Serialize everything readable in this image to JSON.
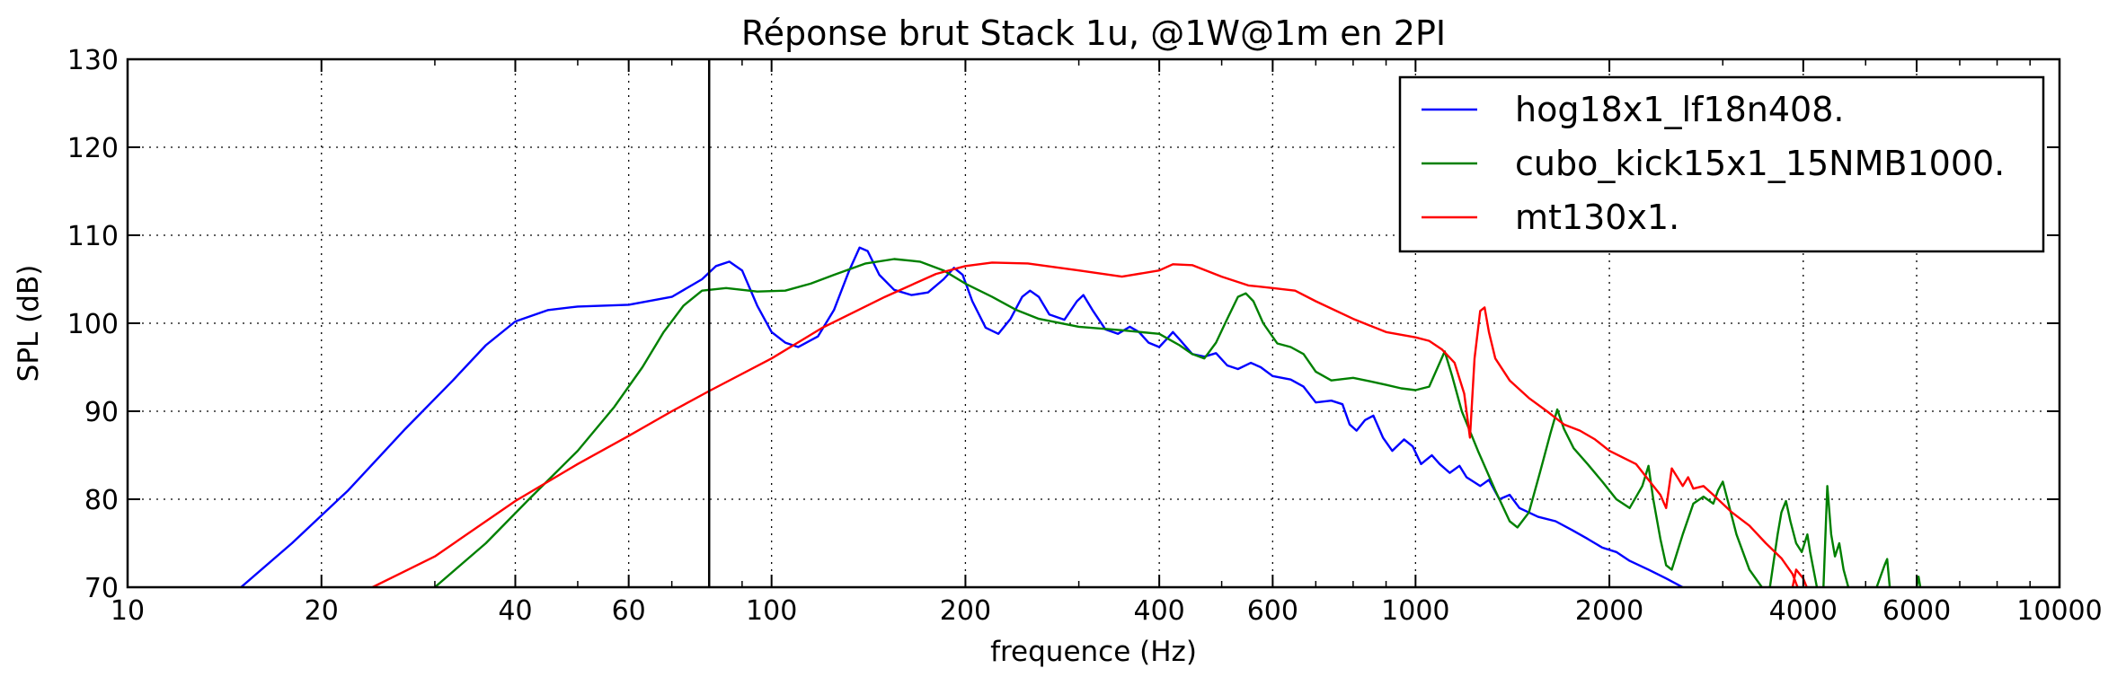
{
  "chart_data": {
    "type": "line",
    "title": "Réponse brut Stack 1u, @1W@1m en 2PI",
    "xlabel": "frequence (Hz)",
    "ylabel": "SPL (dB)",
    "x_scale": "log",
    "xlim": [
      10,
      10000
    ],
    "ylim": [
      70,
      130
    ],
    "x_ticks": [
      10,
      20,
      40,
      60,
      100,
      200,
      400,
      600,
      1000,
      2000,
      4000,
      6000,
      10000
    ],
    "x_tick_labels": [
      "10",
      "20",
      "40",
      "60",
      "100",
      "200",
      "400",
      "600",
      "1000",
      "2000",
      "4000",
      "6000",
      "10000"
    ],
    "y_ticks": [
      70,
      80,
      90,
      100,
      110,
      120,
      130
    ],
    "y_tick_labels": [
      "70",
      "80",
      "90",
      "100",
      "110",
      "120",
      "130"
    ],
    "grid": true,
    "legend_position": "top-right",
    "vertical_marker_x": 80,
    "series": [
      {
        "name": "hog18x1_lf18n408.",
        "color": "#0000ff",
        "points": [
          [
            15,
            70
          ],
          [
            18,
            75
          ],
          [
            22,
            81
          ],
          [
            27,
            88
          ],
          [
            32,
            93.5
          ],
          [
            36,
            97.5
          ],
          [
            40,
            100.2
          ],
          [
            45,
            101.5
          ],
          [
            50,
            101.9
          ],
          [
            60,
            102.1
          ],
          [
            70,
            103
          ],
          [
            78,
            105
          ],
          [
            82,
            106.5
          ],
          [
            86,
            107
          ],
          [
            90,
            106
          ],
          [
            95,
            102
          ],
          [
            100,
            99
          ],
          [
            105,
            97.8
          ],
          [
            110,
            97.3
          ],
          [
            118,
            98.5
          ],
          [
            125,
            101.5
          ],
          [
            132,
            106
          ],
          [
            137,
            108.6
          ],
          [
            141,
            108.2
          ],
          [
            147,
            105.5
          ],
          [
            155,
            103.8
          ],
          [
            165,
            103.2
          ],
          [
            175,
            103.5
          ],
          [
            185,
            105
          ],
          [
            192,
            106.3
          ],
          [
            198,
            105.5
          ],
          [
            205,
            102.5
          ],
          [
            215,
            99.5
          ],
          [
            225,
            98.8
          ],
          [
            235,
            100.5
          ],
          [
            245,
            103
          ],
          [
            252,
            103.7
          ],
          [
            260,
            103
          ],
          [
            270,
            101
          ],
          [
            285,
            100.4
          ],
          [
            298,
            102.5
          ],
          [
            305,
            103.2
          ],
          [
            315,
            101.5
          ],
          [
            330,
            99.3
          ],
          [
            345,
            98.8
          ],
          [
            360,
            99.6
          ],
          [
            372,
            99
          ],
          [
            385,
            97.8
          ],
          [
            400,
            97.3
          ],
          [
            412,
            98.3
          ],
          [
            420,
            99
          ],
          [
            432,
            98
          ],
          [
            450,
            96.5
          ],
          [
            470,
            96.2
          ],
          [
            490,
            96.6
          ],
          [
            510,
            95.2
          ],
          [
            530,
            94.8
          ],
          [
            555,
            95.5
          ],
          [
            575,
            95
          ],
          [
            600,
            94
          ],
          [
            640,
            93.6
          ],
          [
            670,
            92.8
          ],
          [
            700,
            91
          ],
          [
            740,
            91.2
          ],
          [
            770,
            90.8
          ],
          [
            790,
            88.5
          ],
          [
            810,
            87.8
          ],
          [
            835,
            89
          ],
          [
            860,
            89.5
          ],
          [
            890,
            87
          ],
          [
            920,
            85.5
          ],
          [
            960,
            86.8
          ],
          [
            990,
            86
          ],
          [
            1020,
            84
          ],
          [
            1060,
            85
          ],
          [
            1090,
            84
          ],
          [
            1130,
            83
          ],
          [
            1170,
            83.8
          ],
          [
            1200,
            82.5
          ],
          [
            1260,
            81.5
          ],
          [
            1300,
            82.2
          ],
          [
            1350,
            80
          ],
          [
            1400,
            80.5
          ],
          [
            1450,
            79
          ],
          [
            1550,
            78
          ],
          [
            1650,
            77.5
          ],
          [
            1750,
            76.5
          ],
          [
            1850,
            75.5
          ],
          [
            1950,
            74.5
          ],
          [
            2050,
            74
          ],
          [
            2150,
            73
          ],
          [
            2300,
            72
          ],
          [
            2450,
            71
          ],
          [
            2600,
            70
          ]
        ]
      },
      {
        "name": "cubo_kick15x1_15NMB1000.",
        "color": "#008000",
        "points": [
          [
            30,
            70
          ],
          [
            36,
            75
          ],
          [
            42,
            80
          ],
          [
            50,
            85.5
          ],
          [
            57,
            90.5
          ],
          [
            63,
            95
          ],
          [
            68,
            99
          ],
          [
            73,
            102
          ],
          [
            78,
            103.7
          ],
          [
            85,
            104
          ],
          [
            95,
            103.6
          ],
          [
            105,
            103.7
          ],
          [
            115,
            104.5
          ],
          [
            125,
            105.5
          ],
          [
            140,
            106.8
          ],
          [
            155,
            107.3
          ],
          [
            170,
            107
          ],
          [
            185,
            106
          ],
          [
            200,
            104.5
          ],
          [
            220,
            103
          ],
          [
            240,
            101.5
          ],
          [
            260,
            100.5
          ],
          [
            300,
            99.6
          ],
          [
            350,
            99.2
          ],
          [
            400,
            98.8
          ],
          [
            430,
            97.5
          ],
          [
            450,
            96.5
          ],
          [
            470,
            96
          ],
          [
            490,
            97.8
          ],
          [
            510,
            100.5
          ],
          [
            530,
            103
          ],
          [
            545,
            103.4
          ],
          [
            560,
            102.5
          ],
          [
            580,
            100
          ],
          [
            610,
            97.7
          ],
          [
            640,
            97.3
          ],
          [
            670,
            96.5
          ],
          [
            700,
            94.5
          ],
          [
            740,
            93.5
          ],
          [
            800,
            93.8
          ],
          [
            850,
            93.4
          ],
          [
            900,
            93
          ],
          [
            950,
            92.6
          ],
          [
            1000,
            92.4
          ],
          [
            1050,
            92.8
          ],
          [
            1090,
            95.5
          ],
          [
            1110,
            96.8
          ],
          [
            1140,
            94
          ],
          [
            1180,
            90
          ],
          [
            1250,
            85.5
          ],
          [
            1330,
            81
          ],
          [
            1400,
            77.5
          ],
          [
            1440,
            76.8
          ],
          [
            1500,
            78.5
          ],
          [
            1560,
            83
          ],
          [
            1620,
            87.5
          ],
          [
            1660,
            90.2
          ],
          [
            1700,
            88
          ],
          [
            1760,
            85.8
          ],
          [
            1850,
            84
          ],
          [
            1950,
            82
          ],
          [
            2050,
            80
          ],
          [
            2150,
            79
          ],
          [
            2250,
            81.5
          ],
          [
            2300,
            83.8
          ],
          [
            2340,
            80
          ],
          [
            2400,
            75.5
          ],
          [
            2450,
            72.5
          ],
          [
            2500,
            72
          ],
          [
            2600,
            76
          ],
          [
            2700,
            79.5
          ],
          [
            2800,
            80.3
          ],
          [
            2900,
            79.5
          ],
          [
            2950,
            81
          ],
          [
            3000,
            82
          ],
          [
            3050,
            80
          ],
          [
            3150,
            76
          ],
          [
            3300,
            72
          ],
          [
            3450,
            70
          ]
        ]
      },
      {
        "name": "cubo_kick15x1_15NMB1000.",
        "color": "#008000",
        "points": [
          [
            3550,
            70
          ],
          [
            3650,
            76
          ],
          [
            3700,
            78.5
          ],
          [
            3760,
            79.8
          ],
          [
            3820,
            77.5
          ],
          [
            3900,
            75
          ],
          [
            3980,
            74
          ],
          [
            4060,
            76
          ],
          [
            4100,
            74
          ],
          [
            4200,
            70
          ]
        ]
      },
      {
        "name": "cubo_kick15x1_15NMB1000.",
        "color": "#008000",
        "points": [
          [
            4300,
            70
          ],
          [
            4360,
            81.5
          ],
          [
            4420,
            76
          ],
          [
            4480,
            73.5
          ],
          [
            4550,
            75
          ],
          [
            4620,
            72
          ],
          [
            4700,
            70
          ]
        ]
      },
      {
        "name": "cubo_kick15x1_15NMB1000.",
        "color": "#008000",
        "points": [
          [
            5200,
            70
          ],
          [
            5350,
            72.5
          ],
          [
            5400,
            73.2
          ],
          [
            5450,
            70
          ]
        ]
      },
      {
        "name": "cubo_kick15x1_15NMB1000.",
        "color": "#008000",
        "points": [
          [
            6000,
            70
          ],
          [
            6040,
            71.2
          ],
          [
            6080,
            70
          ]
        ]
      },
      {
        "name": "mt130x1.",
        "color": "#ff0000",
        "points": [
          [
            24,
            70
          ],
          [
            30,
            73.5
          ],
          [
            40,
            79.8
          ],
          [
            50,
            84
          ],
          [
            60,
            87.2
          ],
          [
            70,
            90
          ],
          [
            80,
            92.3
          ],
          [
            100,
            96
          ],
          [
            120,
            99.5
          ],
          [
            150,
            103
          ],
          [
            180,
            105.6
          ],
          [
            200,
            106.5
          ],
          [
            220,
            106.9
          ],
          [
            250,
            106.8
          ],
          [
            300,
            106
          ],
          [
            350,
            105.3
          ],
          [
            400,
            106
          ],
          [
            420,
            106.7
          ],
          [
            450,
            106.6
          ],
          [
            500,
            105.3
          ],
          [
            550,
            104.3
          ],
          [
            600,
            104
          ],
          [
            650,
            103.7
          ],
          [
            700,
            102.5
          ],
          [
            800,
            100.5
          ],
          [
            900,
            99
          ],
          [
            1000,
            98.4
          ],
          [
            1050,
            98
          ],
          [
            1100,
            97
          ],
          [
            1150,
            95.5
          ],
          [
            1190,
            92
          ],
          [
            1215,
            87
          ],
          [
            1235,
            96
          ],
          [
            1260,
            101.4
          ],
          [
            1280,
            101.8
          ],
          [
            1300,
            99
          ],
          [
            1330,
            96
          ],
          [
            1400,
            93.5
          ],
          [
            1500,
            91.5
          ],
          [
            1600,
            90
          ],
          [
            1700,
            88.5
          ],
          [
            1800,
            87.8
          ],
          [
            1900,
            86.8
          ],
          [
            2000,
            85.5
          ],
          [
            2200,
            84
          ],
          [
            2400,
            80.5
          ],
          [
            2450,
            79
          ],
          [
            2500,
            83.5
          ],
          [
            2550,
            82.5
          ],
          [
            2600,
            81.5
          ],
          [
            2650,
            82.5
          ],
          [
            2700,
            81.2
          ],
          [
            2800,
            81.5
          ],
          [
            2900,
            80.5
          ],
          [
            3100,
            78.5
          ],
          [
            3300,
            77
          ],
          [
            3500,
            75
          ],
          [
            3700,
            73.3
          ],
          [
            3850,
            71.5
          ],
          [
            3920,
            70
          ]
        ]
      },
      {
        "name": "mt130x1.",
        "color": "#ff0000",
        "points": [
          [
            3850,
            70
          ],
          [
            3900,
            72
          ],
          [
            4000,
            71
          ],
          [
            4050,
            70
          ]
        ]
      }
    ],
    "legend": [
      {
        "label": "hog18x1_lf18n408.",
        "color": "#0000ff"
      },
      {
        "label": "cubo_kick15x1_15NMB1000.",
        "color": "#008000"
      },
      {
        "label": "mt130x1.",
        "color": "#ff0000"
      }
    ]
  }
}
